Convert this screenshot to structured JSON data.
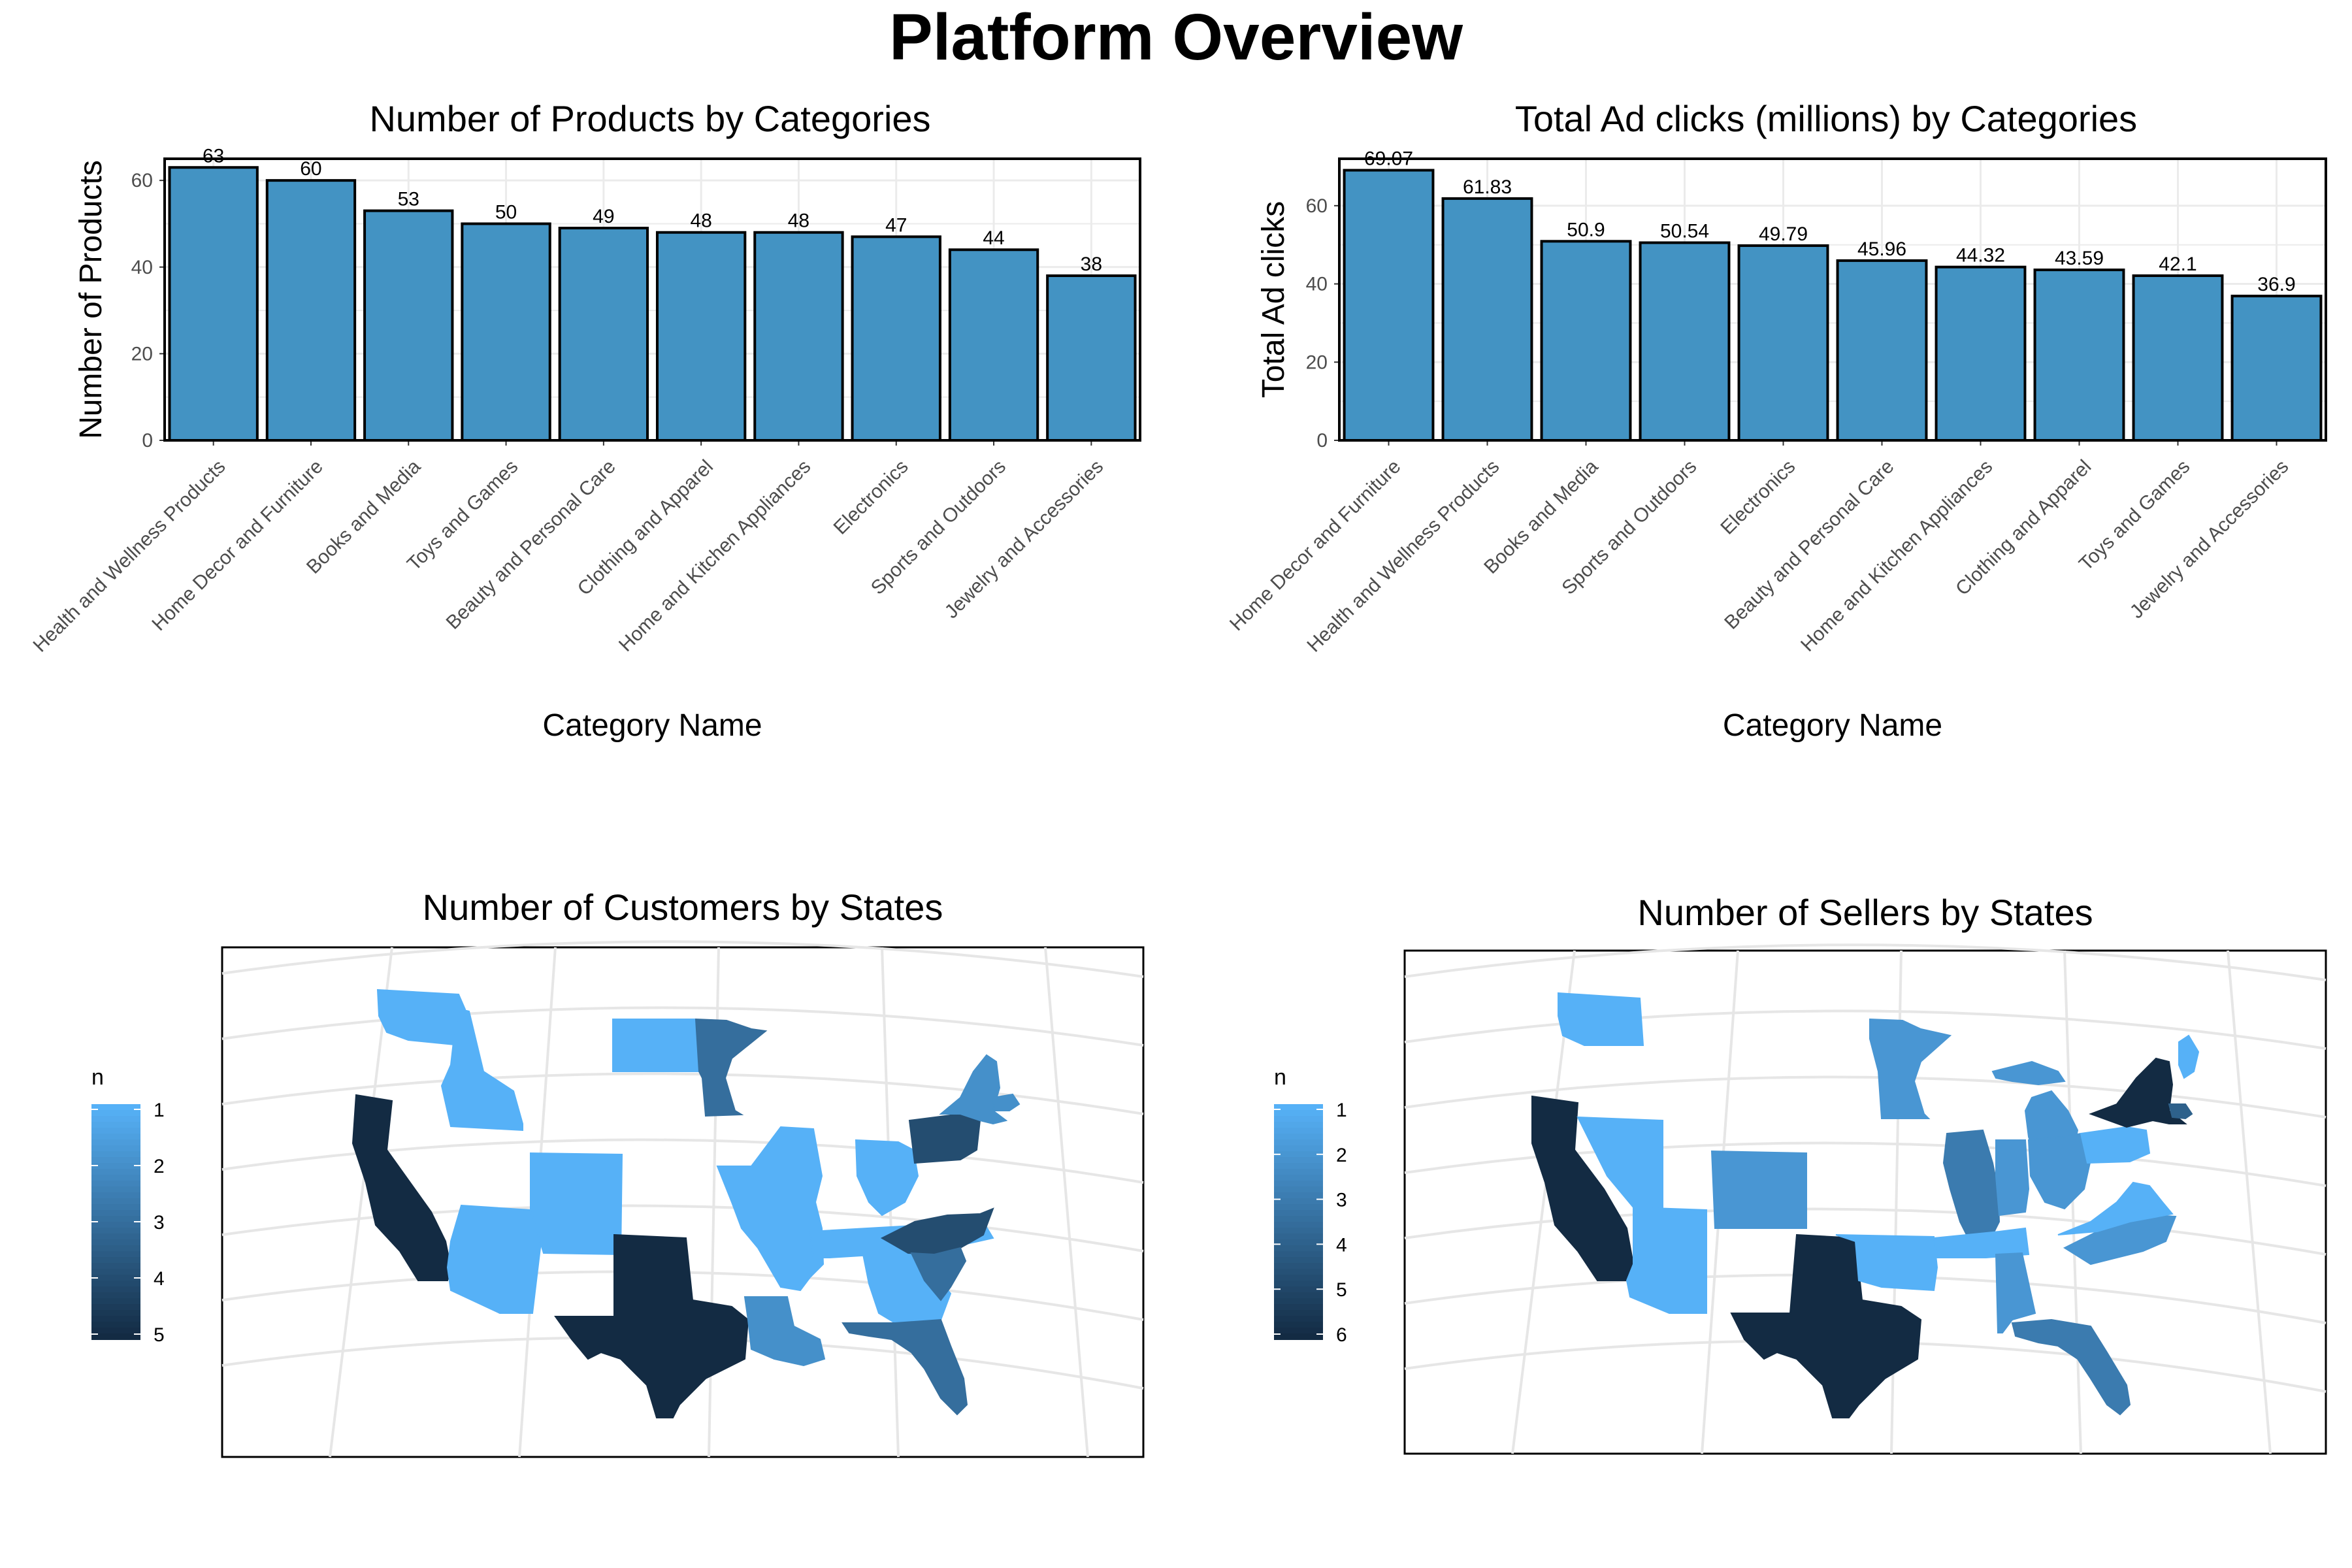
{
  "title": "Platform Overview",
  "colors": {
    "light": "#56b1f7",
    "dark": "#132b43",
    "bar": "#4393c3",
    "grid": "#ebebeb"
  },
  "chart_data": [
    {
      "type": "bar",
      "title": "Number of Products by Categories",
      "xlabel": "Category Name",
      "ylabel": "Number of Products",
      "ylim": [
        0,
        65
      ],
      "yticks": [
        0,
        20,
        40,
        60
      ],
      "categories": [
        "Health and Wellness Products",
        "Home Decor and Furniture",
        "Books and Media",
        "Toys and Games",
        "Beauty and Personal Care",
        "Clothing and Apparel",
        "Home and Kitchen Appliances",
        "Electronics",
        "Sports and Outdoors",
        "Jewelry and Accessories"
      ],
      "values": [
        63,
        60,
        53,
        50,
        49,
        48,
        48,
        47,
        44,
        38
      ],
      "labels": [
        "63",
        "60",
        "53",
        "50",
        "49",
        "48",
        "48",
        "47",
        "44",
        "38"
      ]
    },
    {
      "type": "bar",
      "title": "Total Ad clicks (millions) by Categories",
      "xlabel": "Category Name",
      "ylabel": "Total Ad clicks",
      "ylim": [
        0,
        72
      ],
      "yticks": [
        0,
        20,
        40,
        60
      ],
      "categories": [
        "Home Decor and Furniture",
        "Health and Wellness Products",
        "Books and Media",
        "Sports and Outdoors",
        "Electronics",
        "Beauty and Personal Care",
        "Home and Kitchen Appliances",
        "Clothing and Apparel",
        "Toys and Games",
        "Jewelry and Accessories"
      ],
      "values": [
        69.07,
        61.83,
        50.9,
        50.54,
        49.79,
        45.96,
        44.32,
        43.59,
        42.1,
        36.9
      ],
      "labels": [
        "69.07",
        "61.83",
        "50.9",
        "50.54",
        "49.79",
        "45.96",
        "44.32",
        "43.59",
        "42.1",
        "36.9"
      ]
    },
    {
      "type": "heatmap",
      "title": "Number of Customers by States",
      "legend": {
        "title": "n",
        "ticks": [
          "1",
          "2",
          "3",
          "4",
          "5"
        ],
        "min": 1,
        "max": 5
      },
      "states": [
        {
          "name": "California",
          "n": 5
        },
        {
          "name": "Washington",
          "n": 1
        },
        {
          "name": "Idaho",
          "n": 1
        },
        {
          "name": "Arizona",
          "n": 1
        },
        {
          "name": "Colorado",
          "n": 1
        },
        {
          "name": "Texas",
          "n": 5
        },
        {
          "name": "North Dakota",
          "n": 1
        },
        {
          "name": "Minnesota",
          "n": 3
        },
        {
          "name": "Illinois",
          "n": 1
        },
        {
          "name": "Tennessee",
          "n": 1
        },
        {
          "name": "Louisiana",
          "n": 2
        },
        {
          "name": "Ohio",
          "n": 1
        },
        {
          "name": "Georgia",
          "n": 1
        },
        {
          "name": "Florida",
          "n": 3
        },
        {
          "name": "North Carolina",
          "n": 4
        },
        {
          "name": "South Carolina",
          "n": 3
        },
        {
          "name": "Pennsylvania",
          "n": 4
        },
        {
          "name": "New York",
          "n": 2
        },
        {
          "name": "Massachusetts",
          "n": 2
        }
      ]
    },
    {
      "type": "heatmap",
      "title": "Number of Sellers by States",
      "legend": {
        "title": "n",
        "ticks": [
          "1",
          "2",
          "3",
          "4",
          "5",
          "6"
        ],
        "min": 1,
        "max": 6
      },
      "states": [
        {
          "name": "California",
          "n": 6
        },
        {
          "name": "Washington",
          "n": 1
        },
        {
          "name": "Nevada",
          "n": 1
        },
        {
          "name": "Arizona",
          "n": 1
        },
        {
          "name": "Colorado",
          "n": 2
        },
        {
          "name": "Texas",
          "n": 6
        },
        {
          "name": "Oklahoma",
          "n": 1
        },
        {
          "name": "Minnesota",
          "n": 2
        },
        {
          "name": "Michigan",
          "n": 2
        },
        {
          "name": "Illinois",
          "n": 3
        },
        {
          "name": "Indiana",
          "n": 2
        },
        {
          "name": "Ohio",
          "n": 2
        },
        {
          "name": "Tennessee",
          "n": 1
        },
        {
          "name": "Alabama",
          "n": 2
        },
        {
          "name": "Florida",
          "n": 3
        },
        {
          "name": "North Carolina",
          "n": 2
        },
        {
          "name": "Virginia",
          "n": 1
        },
        {
          "name": "Pennsylvania",
          "n": 1
        },
        {
          "name": "New York",
          "n": 6
        },
        {
          "name": "Maine",
          "n": 1
        },
        {
          "name": "Massachusetts",
          "n": 4
        }
      ]
    }
  ]
}
